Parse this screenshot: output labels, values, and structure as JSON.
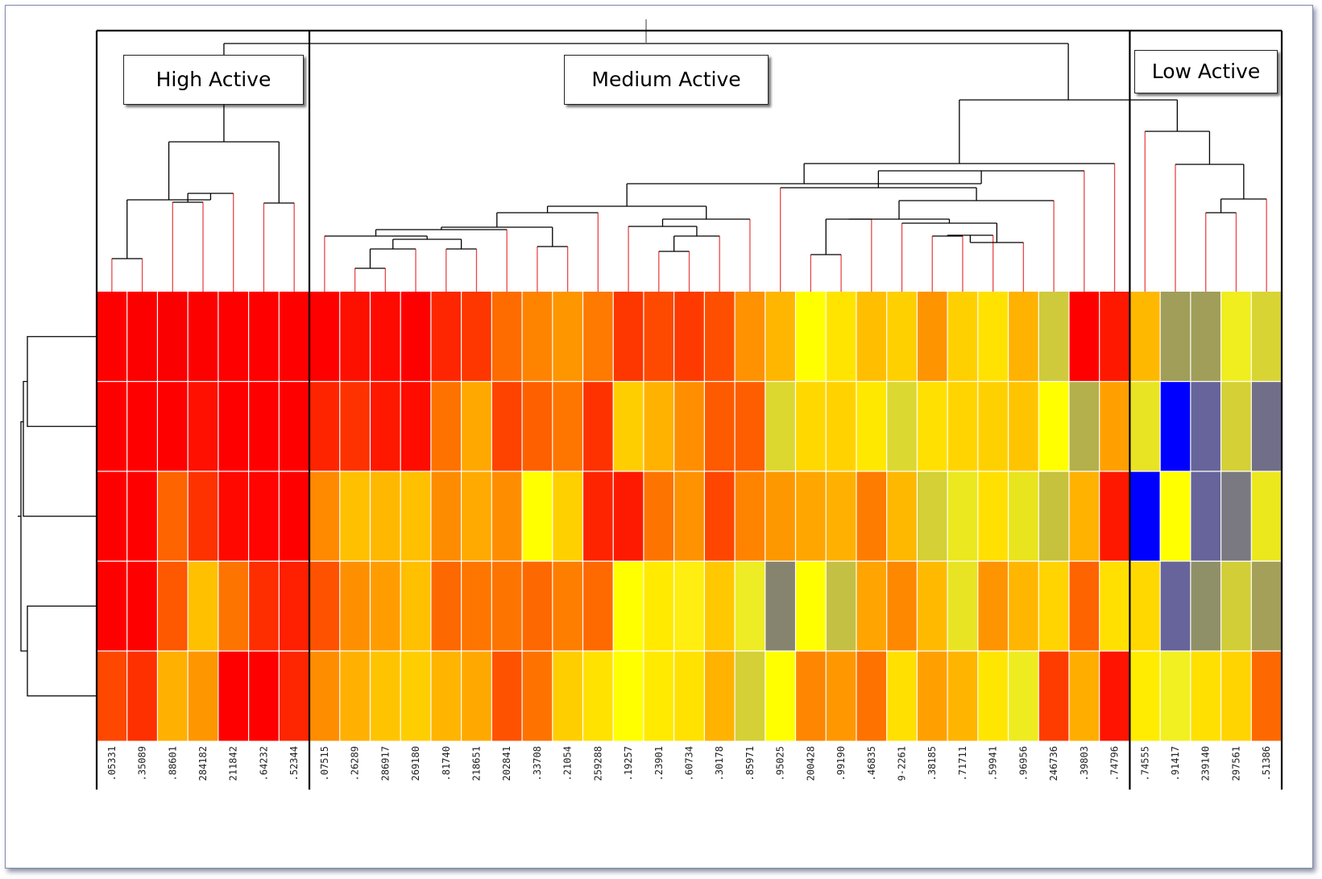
{
  "chart_data": {
    "type": "heatmap",
    "clusters": [
      {
        "label": "High Active",
        "columns": 7
      },
      {
        "label": "Medium Active",
        "columns": 27
      },
      {
        "label": "Low Active",
        "columns": 5
      }
    ],
    "column_labels": [
      ".05331",
      ".35089",
      ".88601",
      "284182",
      "211842",
      ".64232",
      ".52344",
      ".07515",
      ".26289",
      "286917",
      "269180",
      ".81740",
      "218651",
      "202841",
      ".33708",
      ".21054",
      "259288",
      ".19257",
      ".23901",
      ".60734",
      ".30178",
      ".85971",
      ".95025",
      "200428",
      ".99190",
      ".46835",
      "9-2261",
      ".38185",
      ".71711",
      ".59941",
      ".96956",
      "246736",
      ".39803",
      ".74796",
      ".74555",
      ".91417",
      "239140",
      "297561",
      ".51386"
    ],
    "values": [
      [
        "#ff0000",
        "#fc0000",
        "#fb0000",
        "#fd0000",
        "#fe0000",
        "#ff0000",
        "#ff0000",
        "#ff0000",
        "#fe1000",
        "#fe0a00",
        "#fd0000",
        "#fe2600",
        "#fe3600",
        "#fe6c00",
        "#fe8400",
        "#fe9600",
        "#fe7a00",
        "#fe3600",
        "#fe4a00",
        "#fe3a00",
        "#fe4e00",
        "#fe9200",
        "#feb600",
        "#ffff00",
        "#ffe400",
        "#ffbe00",
        "#ffd000",
        "#fe9400",
        "#ffd000",
        "#ffe200",
        "#ffb200",
        "#ceca3c",
        "#ff0000",
        "#fe1800",
        "#ffb800",
        "#a09e58",
        "#a09e58",
        "#f0ee1e",
        "#d8d434"
      ],
      [
        "#ff0000",
        "#ff0000",
        "#ff0000",
        "#ff1000",
        "#ff0000",
        "#ff0000",
        "#ff0000",
        "#ff2400",
        "#fe3200",
        "#fe1800",
        "#fe0c00",
        "#fe7200",
        "#ffa800",
        "#fe4200",
        "#fe6000",
        "#fe7600",
        "#fe3200",
        "#ffce00",
        "#ffb200",
        "#ff8e00",
        "#fe5a00",
        "#fe5e00",
        "#dcd830",
        "#ffd800",
        "#ffd200",
        "#ffe800",
        "#dcd832",
        "#ffe000",
        "#ffd400",
        "#ffd000",
        "#ffc400",
        "#ffff00",
        "#b4b04c",
        "#ffa000",
        "#e8e424",
        "#0000ff",
        "#66649a",
        "#d4d036",
        "#706e88"
      ],
      [
        "#ff0000",
        "#ff0000",
        "#fe6400",
        "#fe3200",
        "#ff0800",
        "#ff0400",
        "#ff0000",
        "#ff8a00",
        "#ffc000",
        "#ffb800",
        "#ffc000",
        "#fe8c00",
        "#ffaa00",
        "#fe8e00",
        "#ffff00",
        "#ffd000",
        "#fe2400",
        "#fe1a00",
        "#fe7400",
        "#fe9200",
        "#fe4600",
        "#fe8400",
        "#fe9800",
        "#ffa600",
        "#ffb000",
        "#fe7c00",
        "#ffb800",
        "#d4d036",
        "#ebe820",
        "#ffe000",
        "#e8e41e",
        "#c6c23e",
        "#ffb200",
        "#ff1800",
        "#0000ff",
        "#ffff00",
        "#66649a",
        "#7a7880",
        "#ece81e"
      ],
      [
        "#ff0000",
        "#ff0000",
        "#fe5800",
        "#ffc000",
        "#fe7400",
        "#fe2e00",
        "#fe2000",
        "#fe5200",
        "#fe9000",
        "#ff9c00",
        "#ffc000",
        "#fe6800",
        "#fe7600",
        "#fe7400",
        "#fe6800",
        "#fe7e00",
        "#fe6a00",
        "#ffff00",
        "#ffea00",
        "#ffee10",
        "#ffc800",
        "#eeec24",
        "#86846e",
        "#ffff00",
        "#c4c044",
        "#ffa400",
        "#fe8800",
        "#ffba00",
        "#e8e424",
        "#fe9400",
        "#ffb600",
        "#ffd400",
        "#fe6400",
        "#ffe000",
        "#ffd800",
        "#66649a",
        "#909068",
        "#d2ce38",
        "#a4a05a"
      ],
      [
        "#fe4800",
        "#fe3000",
        "#ffb000",
        "#fe9600",
        "#ff0000",
        "#ff0000",
        "#fe2600",
        "#fe8e00",
        "#ffb000",
        "#ffc400",
        "#ffce00",
        "#ffb400",
        "#ffa800",
        "#fe5200",
        "#fe7200",
        "#ffce00",
        "#ffe200",
        "#ffff00",
        "#ffea00",
        "#ffe200",
        "#ffb200",
        "#d4d036",
        "#ffff00",
        "#fe8600",
        "#ff9800",
        "#fe7200",
        "#ffe000",
        "#ffa000",
        "#ffb400",
        "#ffe600",
        "#eeec20",
        "#fe3c00",
        "#ffae00",
        "#fe1400",
        "#ffec00",
        "#f2f020",
        "#ffe000",
        "#ffd400",
        "#fe6800"
      ]
    ]
  }
}
